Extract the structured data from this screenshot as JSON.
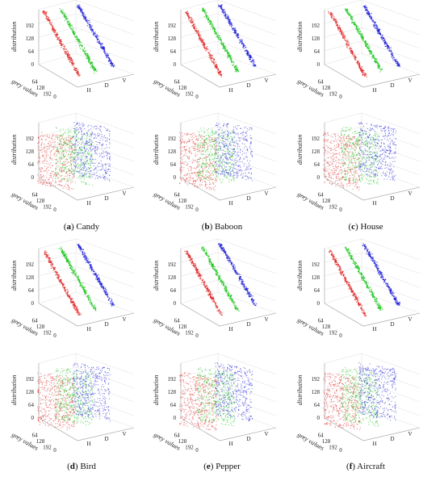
{
  "figure": {
    "captions": [
      {
        "key": "a",
        "name": "Candy"
      },
      {
        "key": "b",
        "name": "Baboon"
      },
      {
        "key": "c",
        "name": "House"
      },
      {
        "key": "d",
        "name": "Bird"
      },
      {
        "key": "e",
        "name": "Pepper"
      },
      {
        "key": "f",
        "name": "Aircraft"
      }
    ],
    "axis_labels": {
      "z": "distribution",
      "y": "grey values"
    },
    "z_ticks": [
      "0",
      "64",
      "128",
      "192"
    ],
    "y_ticks": [
      "64",
      "128",
      "192"
    ],
    "y_zero": "0",
    "x_ticks": [
      "H",
      "D",
      "V"
    ],
    "series_colors": {
      "H": "#e02020",
      "D": "#18c418",
      "V": "#1a1ad8"
    }
  },
  "chart_data": [
    {
      "image": "Candy",
      "row": "top",
      "type": "scatter",
      "variant": "diagonal",
      "series": [
        "H",
        "D",
        "V"
      ],
      "zlim": [
        0,
        255
      ],
      "ylim": [
        0,
        255
      ]
    },
    {
      "image": "Baboon",
      "row": "top",
      "type": "scatter",
      "variant": "diagonal",
      "series": [
        "H",
        "D",
        "V"
      ],
      "zlim": [
        0,
        255
      ],
      "ylim": [
        0,
        255
      ]
    },
    {
      "image": "House",
      "row": "top",
      "type": "scatter",
      "variant": "diagonal",
      "series": [
        "H",
        "D",
        "V"
      ],
      "zlim": [
        0,
        255
      ],
      "ylim": [
        0,
        255
      ]
    },
    {
      "image": "Candy",
      "row": "bottom",
      "type": "scatter",
      "variant": "uniform",
      "series": [
        "H",
        "D",
        "V"
      ],
      "zlim": [
        0,
        255
      ],
      "ylim": [
        0,
        255
      ]
    },
    {
      "image": "Baboon",
      "row": "bottom",
      "type": "scatter",
      "variant": "uniform",
      "series": [
        "H",
        "D",
        "V"
      ],
      "zlim": [
        0,
        255
      ],
      "ylim": [
        0,
        255
      ]
    },
    {
      "image": "House",
      "row": "bottom",
      "type": "scatter",
      "variant": "uniform",
      "series": [
        "H",
        "D",
        "V"
      ],
      "zlim": [
        0,
        255
      ],
      "ylim": [
        0,
        255
      ]
    },
    {
      "image": "Bird",
      "row": "top",
      "type": "scatter",
      "variant": "diagonal",
      "series": [
        "H",
        "D",
        "V"
      ],
      "zlim": [
        0,
        255
      ],
      "ylim": [
        0,
        255
      ]
    },
    {
      "image": "Pepper",
      "row": "top",
      "type": "scatter",
      "variant": "diagonal",
      "series": [
        "H",
        "D",
        "V"
      ],
      "zlim": [
        0,
        255
      ],
      "ylim": [
        0,
        255
      ]
    },
    {
      "image": "Aircraft",
      "row": "top",
      "type": "scatter",
      "variant": "diagonal",
      "series": [
        "H",
        "D",
        "V"
      ],
      "zlim": [
        0,
        255
      ],
      "ylim": [
        0,
        255
      ]
    },
    {
      "image": "Bird",
      "row": "bottom",
      "type": "scatter",
      "variant": "uniform",
      "series": [
        "H",
        "D",
        "V"
      ],
      "zlim": [
        0,
        255
      ],
      "ylim": [
        0,
        255
      ]
    },
    {
      "image": "Pepper",
      "row": "bottom",
      "type": "scatter",
      "variant": "uniform",
      "series": [
        "H",
        "D",
        "V"
      ],
      "zlim": [
        0,
        255
      ],
      "ylim": [
        0,
        255
      ]
    },
    {
      "image": "Aircraft",
      "row": "bottom",
      "type": "scatter",
      "variant": "uniform",
      "series": [
        "H",
        "D",
        "V"
      ],
      "zlim": [
        0,
        255
      ],
      "ylim": [
        0,
        255
      ]
    }
  ]
}
